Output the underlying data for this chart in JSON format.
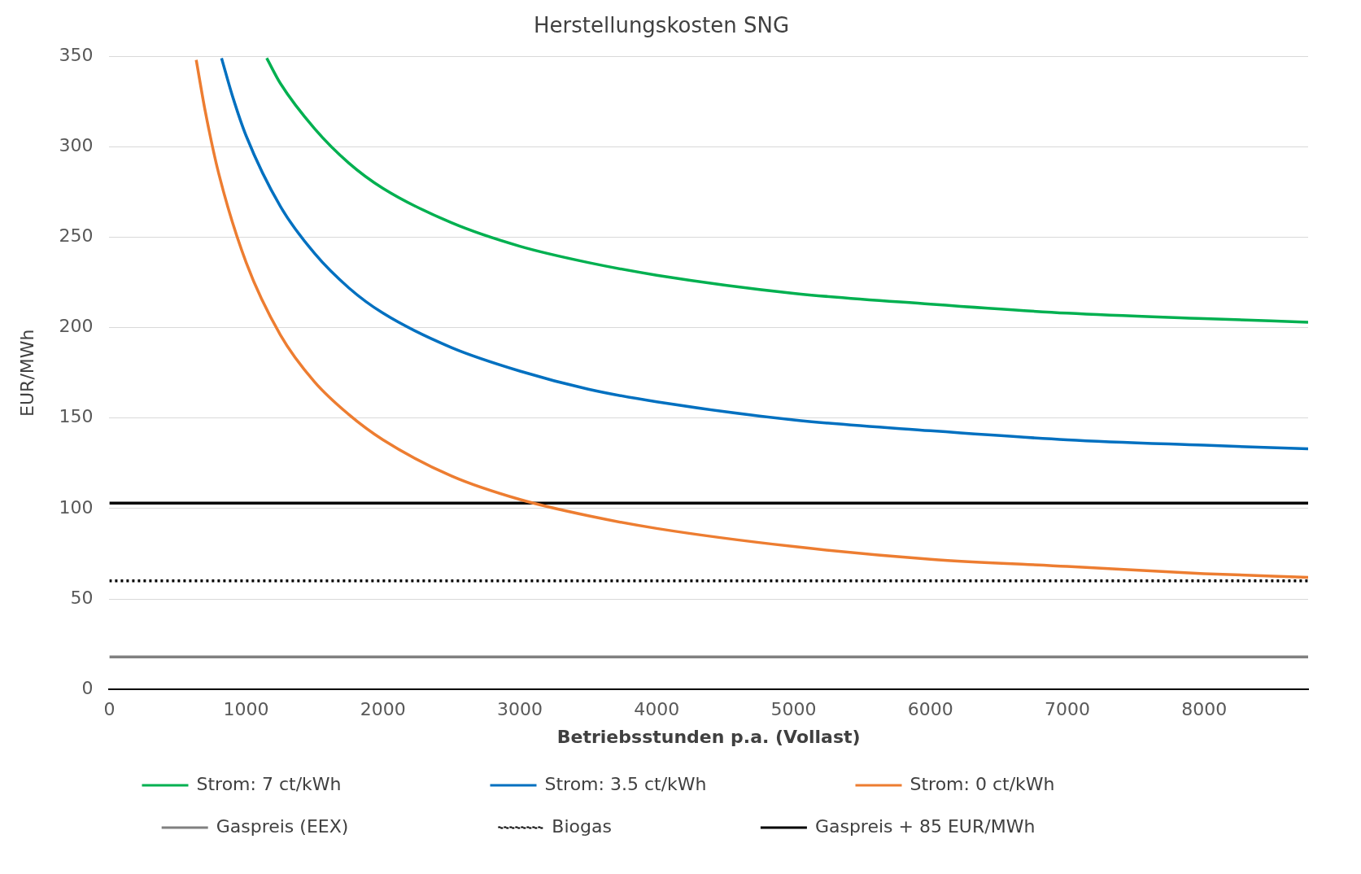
{
  "chart_data": {
    "type": "line",
    "title": "Herstellungskosten SNG",
    "xlabel": "Betriebsstunden p.a. (Vollast)",
    "ylabel": "EUR/MWh",
    "xlim": [
      0,
      8760
    ],
    "xticks": [
      0,
      1000,
      2000,
      3000,
      4000,
      5000,
      6000,
      7000,
      8000
    ],
    "ylim": [
      0,
      350
    ],
    "yticks": [
      0,
      50,
      100,
      150,
      200,
      250,
      300,
      350
    ],
    "grid": "y",
    "legend": "bottom",
    "marker": "none",
    "series": [
      {
        "name": "Strom: 7 ct/kWh",
        "color": "#00b050",
        "x": [
          1150,
          1250,
          1500,
          1750,
          2000,
          2500,
          3000,
          3500,
          4000,
          5000,
          6000,
          7000,
          8000,
          8760
        ],
        "values": [
          349,
          335,
          310,
          291,
          277,
          258,
          245,
          236,
          229,
          219,
          213,
          208,
          205,
          203
        ]
      },
      {
        "name": "Strom: 3.5 ct/kWh",
        "color": "#0070c0",
        "x": [
          820,
          900,
          1000,
          1250,
          1500,
          1750,
          2000,
          2500,
          3000,
          3500,
          4000,
          5000,
          6000,
          7000,
          8000,
          8760
        ],
        "values": [
          349,
          328,
          306,
          267,
          241,
          222,
          208,
          189,
          176,
          166,
          159,
          149,
          143,
          138,
          135,
          133
        ]
      },
      {
        "name": "Strom: 0 ct/kWh",
        "color": "#ed7d31",
        "x": [
          635,
          700,
          800,
          1000,
          1250,
          1500,
          1750,
          2000,
          2500,
          3000,
          3500,
          4000,
          5000,
          6000,
          7000,
          8000,
          8760
        ],
        "values": [
          348,
          320,
          285,
          236,
          196,
          170,
          152,
          138,
          118,
          105,
          96,
          89,
          79,
          72,
          68,
          64,
          62
        ]
      },
      {
        "name": "Gaspreis (EEX)",
        "color": "#808080",
        "x": [
          0,
          8760
        ],
        "values": [
          18,
          18
        ]
      },
      {
        "name": "Biogas",
        "color": "#000000",
        "line_style": "dotted",
        "x": [
          0,
          8760
        ],
        "values": [
          60,
          60
        ]
      },
      {
        "name": "Gaspreis + 85 EUR/MWh",
        "color": "#000000",
        "x": [
          0,
          8760
        ],
        "values": [
          103,
          103
        ]
      }
    ]
  }
}
